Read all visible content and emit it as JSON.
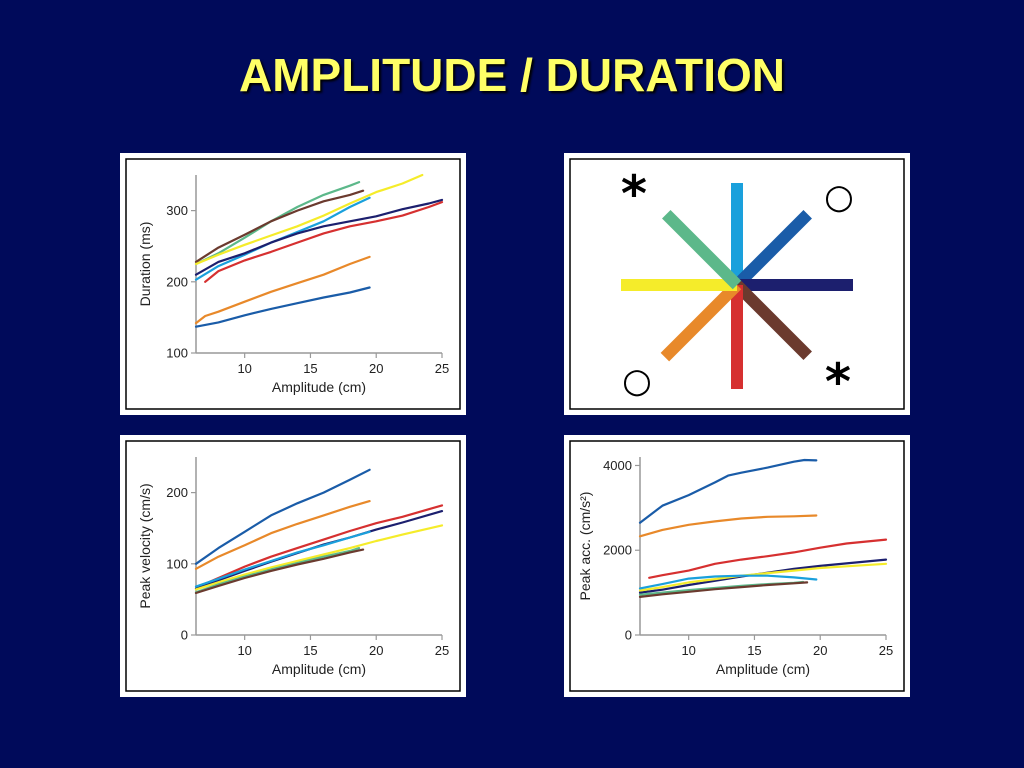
{
  "slide_title": "AMPLITUDE / DURATION",
  "colors": {
    "background": "#000a5a",
    "title": "#ffff66",
    "dark_blue": "#1a5ca8",
    "orange": "#e8892a",
    "red": "#d63030",
    "navy": "#1c1f6e",
    "yellow": "#f5ec2a",
    "brown": "#6b3a2e",
    "light_blue": "#1aa0dc",
    "green": "#5cb88a"
  },
  "direction_diagram": {
    "markers": [
      "*",
      "○",
      "○",
      "*"
    ],
    "spokes": [
      {
        "direction": "up",
        "color": "#1aa0dc"
      },
      {
        "direction": "up-right",
        "color": "#1a5ca8"
      },
      {
        "direction": "right",
        "color": "#1c1f6e"
      },
      {
        "direction": "down-right",
        "color": "#6b3a2e"
      },
      {
        "direction": "down",
        "color": "#d63030"
      },
      {
        "direction": "down-left",
        "color": "#e8892a"
      },
      {
        "direction": "left",
        "color": "#f5ec2a"
      },
      {
        "direction": "up-left",
        "color": "#5cb88a"
      }
    ]
  },
  "chart_data": [
    {
      "type": "line",
      "id": "duration",
      "xlabel": "Amplitude (cm)",
      "ylabel": "Duration (ms)",
      "xlim": [
        6.3,
        25
      ],
      "ylim": [
        100,
        350
      ],
      "xticks": [
        10,
        15,
        20,
        25
      ],
      "yticks": [
        100,
        200,
        300
      ],
      "series": [
        {
          "color": "#5cb88a",
          "x": [
            6.3,
            8,
            10,
            12,
            14,
            16,
            18,
            18.7
          ],
          "y": [
            225,
            240,
            262,
            285,
            305,
            322,
            335,
            340
          ]
        },
        {
          "color": "#6b3a2e",
          "x": [
            6.3,
            8,
            10,
            12,
            14,
            16,
            18,
            19
          ],
          "y": [
            228,
            248,
            266,
            285,
            300,
            313,
            322,
            328
          ]
        },
        {
          "color": "#f5ec2a",
          "x": [
            6.3,
            8,
            10,
            12,
            14,
            16,
            18,
            20,
            22,
            23.5
          ],
          "y": [
            225,
            238,
            252,
            265,
            278,
            293,
            310,
            326,
            338,
            350
          ]
        },
        {
          "color": "#1aa0dc",
          "x": [
            6.3,
            8,
            10,
            12,
            14,
            16,
            18,
            19.5
          ],
          "y": [
            203,
            222,
            238,
            255,
            270,
            285,
            305,
            318
          ]
        },
        {
          "color": "#1c1f6e",
          "x": [
            6.3,
            8,
            10,
            12,
            14,
            16,
            18,
            20,
            22,
            24,
            25
          ],
          "y": [
            210,
            228,
            240,
            255,
            268,
            278,
            285,
            292,
            302,
            310,
            315
          ]
        },
        {
          "color": "#d63030",
          "x": [
            7,
            8,
            10,
            12,
            14,
            16,
            18,
            20,
            22,
            24,
            25
          ],
          "y": [
            200,
            215,
            230,
            242,
            255,
            268,
            278,
            285,
            293,
            305,
            312
          ]
        },
        {
          "color": "#e8892a",
          "x": [
            6.3,
            7,
            8,
            10,
            12,
            14,
            16,
            18,
            19.5
          ],
          "y": [
            142,
            152,
            158,
            172,
            186,
            198,
            210,
            225,
            235
          ]
        },
        {
          "color": "#1a5ca8",
          "x": [
            6.3,
            8,
            10,
            12,
            14,
            16,
            18,
            19.5
          ],
          "y": [
            137,
            143,
            153,
            162,
            170,
            178,
            185,
            192
          ]
        }
      ]
    },
    {
      "type": "line",
      "id": "peak-velocity",
      "xlabel": "Amplitude (cm)",
      "ylabel": "Peak velocity (cm/s)",
      "xlim": [
        6.3,
        25
      ],
      "ylim": [
        0,
        250
      ],
      "xticks": [
        10,
        15,
        20,
        25
      ],
      "yticks": [
        0,
        100,
        200
      ],
      "series": [
        {
          "color": "#1a5ca8",
          "x": [
            6.3,
            8,
            10,
            12,
            14,
            16,
            18,
            19.5
          ],
          "y": [
            100,
            122,
            145,
            168,
            185,
            200,
            218,
            232
          ]
        },
        {
          "color": "#e8892a",
          "x": [
            6.3,
            8,
            10,
            12,
            14,
            16,
            18,
            19.5
          ],
          "y": [
            93,
            110,
            126,
            143,
            156,
            168,
            180,
            188
          ]
        },
        {
          "color": "#d63030",
          "x": [
            7,
            8,
            10,
            12,
            14,
            16,
            18,
            20,
            22,
            25
          ],
          "y": [
            72,
            80,
            96,
            110,
            122,
            134,
            146,
            157,
            166,
            182
          ]
        },
        {
          "color": "#1c1f6e",
          "x": [
            6.3,
            8,
            10,
            12,
            14,
            16,
            18,
            20,
            22,
            25
          ],
          "y": [
            65,
            77,
            90,
            103,
            115,
            127,
            137,
            148,
            158,
            174
          ]
        },
        {
          "color": "#1aa0dc",
          "x": [
            6.3,
            8,
            10,
            12,
            14,
            16,
            18,
            19.5
          ],
          "y": [
            68,
            79,
            92,
            104,
            116,
            126,
            137,
            145
          ]
        },
        {
          "color": "#f5ec2a",
          "x": [
            6.3,
            8,
            10,
            12,
            14,
            16,
            18,
            20,
            22,
            25
          ],
          "y": [
            64,
            74,
            85,
            95,
            104,
            113,
            122,
            132,
            141,
            154
          ]
        },
        {
          "color": "#5cb88a",
          "x": [
            6.3,
            8,
            10,
            12,
            14,
            16,
            18,
            18.7
          ],
          "y": [
            60,
            71,
            82,
            92,
            101,
            110,
            118,
            122
          ]
        },
        {
          "color": "#6b3a2e",
          "x": [
            6.3,
            8,
            10,
            12,
            14,
            16,
            18,
            19
          ],
          "y": [
            59,
            69,
            80,
            90,
            99,
            107,
            116,
            120
          ]
        }
      ]
    },
    {
      "type": "line",
      "id": "peak-acceleration",
      "xlabel": "Amplitude (cm)",
      "ylabel": "Peak acc. (cm/s²)",
      "xlim": [
        6.3,
        25
      ],
      "ylim": [
        0,
        4200
      ],
      "xticks": [
        10,
        15,
        20,
        25
      ],
      "yticks": [
        0,
        2000,
        4000
      ],
      "series": [
        {
          "color": "#1a5ca8",
          "x": [
            6.3,
            8,
            10,
            12,
            13,
            14,
            16,
            18,
            18.8,
            19.7
          ],
          "y": [
            2650,
            3050,
            3300,
            3600,
            3760,
            3830,
            3950,
            4090,
            4130,
            4120
          ]
        },
        {
          "color": "#e8892a",
          "x": [
            6.3,
            8,
            10,
            12,
            14,
            16,
            18,
            19.7
          ],
          "y": [
            2330,
            2480,
            2600,
            2680,
            2750,
            2790,
            2800,
            2820
          ]
        },
        {
          "color": "#d63030",
          "x": [
            7,
            8,
            10,
            12,
            14,
            16,
            18,
            20,
            22,
            25
          ],
          "y": [
            1350,
            1410,
            1520,
            1680,
            1780,
            1860,
            1950,
            2060,
            2160,
            2250
          ]
        },
        {
          "color": "#1c1f6e",
          "x": [
            6.3,
            8,
            10,
            12,
            14,
            16,
            18,
            20,
            22,
            25
          ],
          "y": [
            1000,
            1070,
            1180,
            1280,
            1380,
            1470,
            1560,
            1630,
            1690,
            1780
          ]
        },
        {
          "color": "#f5ec2a",
          "x": [
            6.3,
            8,
            10,
            12,
            14,
            16,
            18,
            20,
            22,
            25
          ],
          "y": [
            1050,
            1130,
            1240,
            1320,
            1400,
            1460,
            1520,
            1580,
            1620,
            1680
          ]
        },
        {
          "color": "#1aa0dc",
          "x": [
            6.3,
            8,
            10,
            12,
            14,
            16,
            18,
            19.7
          ],
          "y": [
            1100,
            1200,
            1330,
            1380,
            1400,
            1400,
            1360,
            1310
          ]
        },
        {
          "color": "#5cb88a",
          "x": [
            6.3,
            8,
            10,
            12,
            14,
            16,
            18,
            18.7
          ],
          "y": [
            950,
            1000,
            1060,
            1110,
            1160,
            1200,
            1230,
            1250
          ]
        },
        {
          "color": "#6b3a2e",
          "x": [
            6.3,
            8,
            10,
            12,
            14,
            16,
            18,
            19
          ],
          "y": [
            900,
            960,
            1020,
            1080,
            1130,
            1180,
            1220,
            1240
          ]
        }
      ]
    }
  ]
}
